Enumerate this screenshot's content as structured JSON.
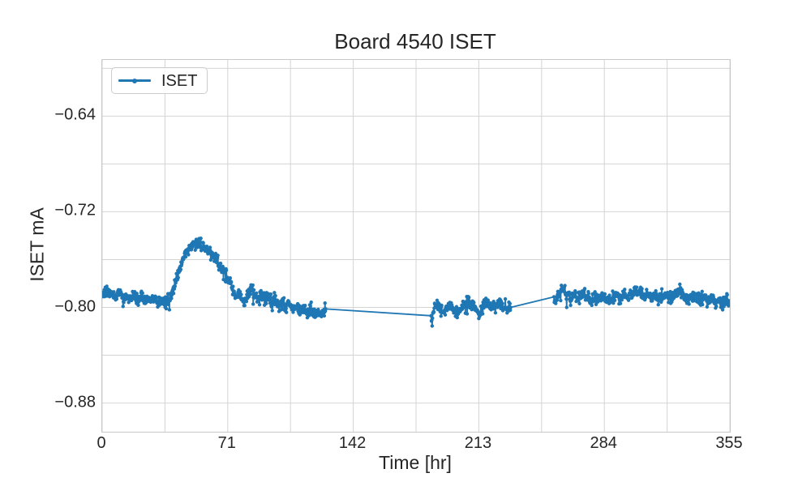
{
  "chart_data": {
    "type": "line",
    "title": "Board 4540 ISET",
    "xlabel": "Time [hr]",
    "ylabel": "ISET mA",
    "xlim": [
      0,
      355
    ],
    "ylim": [
      -0.904,
      -0.593
    ],
    "xticks": [
      0,
      71,
      142,
      213,
      284,
      355
    ],
    "xtick_labels": [
      "0",
      "71",
      "142",
      "213",
      "284",
      "355"
    ],
    "ytick_values": [
      -0.64,
      -0.72,
      -0.8,
      -0.88
    ],
    "ytick_labels": [
      "−0.64",
      "−0.72",
      "−0.80",
      "−0.88"
    ],
    "grid": true,
    "x_grid_step": 35.5,
    "y_grid_top": -0.6,
    "y_grid_bottom": -0.88,
    "y_grid_step": 0.04,
    "grid_color": "#d4d4d4",
    "spine_color": "#c9c9c9",
    "text_color": "#262626",
    "background_color": "#ffffff",
    "legend": {
      "position": "upper left",
      "entries": [
        {
          "label": "ISET",
          "color": "#1f77b4",
          "marker": "circle"
        }
      ]
    },
    "series": [
      {
        "name": "ISET",
        "color": "#1f77b4",
        "line_width": 1.8,
        "marker_radius": 2.2,
        "sample_step_hr": 0.2,
        "noise_sigma": 0.0024,
        "spike_probability": 0.012,
        "seed": 1337,
        "segments": [
          [
            0,
            126.5
          ],
          [
            186,
            231
          ],
          [
            255.5,
            355
          ]
        ],
        "gaps_hr": [
          [
            126.5,
            186
          ],
          [
            231,
            255.5
          ]
        ],
        "trend_keypoints": [
          [
            0,
            -0.789
          ],
          [
            2,
            -0.786
          ],
          [
            4,
            -0.789
          ],
          [
            6,
            -0.787
          ],
          [
            8,
            -0.79
          ],
          [
            10,
            -0.787
          ],
          [
            12,
            -0.793
          ],
          [
            14,
            -0.79
          ],
          [
            16,
            -0.792
          ],
          [
            18,
            -0.79
          ],
          [
            20,
            -0.793
          ],
          [
            22,
            -0.791
          ],
          [
            24,
            -0.794
          ],
          [
            26,
            -0.792
          ],
          [
            28,
            -0.795
          ],
          [
            30,
            -0.792
          ],
          [
            32,
            -0.795
          ],
          [
            34,
            -0.793
          ],
          [
            36,
            -0.796
          ],
          [
            38,
            -0.793
          ],
          [
            40,
            -0.786
          ],
          [
            42,
            -0.776
          ],
          [
            44,
            -0.767
          ],
          [
            46,
            -0.759
          ],
          [
            48,
            -0.753
          ],
          [
            50,
            -0.749
          ],
          [
            52,
            -0.747
          ],
          [
            54,
            -0.746
          ],
          [
            56,
            -0.748
          ],
          [
            58,
            -0.75
          ],
          [
            60,
            -0.752
          ],
          [
            62,
            -0.756
          ],
          [
            64,
            -0.76
          ],
          [
            66,
            -0.765
          ],
          [
            68,
            -0.769
          ],
          [
            70,
            -0.772
          ],
          [
            72,
            -0.777
          ],
          [
            74,
            -0.786
          ],
          [
            76,
            -0.793
          ],
          [
            78,
            -0.787
          ],
          [
            80,
            -0.796
          ],
          [
            82,
            -0.79
          ],
          [
            84,
            -0.785
          ],
          [
            86,
            -0.789
          ],
          [
            88,
            -0.793
          ],
          [
            90,
            -0.789
          ],
          [
            92,
            -0.794
          ],
          [
            94,
            -0.791
          ],
          [
            96,
            -0.797
          ],
          [
            98,
            -0.794
          ],
          [
            100,
            -0.799
          ],
          [
            102,
            -0.795
          ],
          [
            104,
            -0.8
          ],
          [
            106,
            -0.797
          ],
          [
            108,
            -0.803
          ],
          [
            110,
            -0.799
          ],
          [
            112,
            -0.804
          ],
          [
            114,
            -0.8
          ],
          [
            116,
            -0.806
          ],
          [
            118,
            -0.802
          ],
          [
            120,
            -0.806
          ],
          [
            122,
            -0.803
          ],
          [
            124,
            -0.806
          ],
          [
            126.5,
            -0.803
          ],
          [
            186,
            -0.806
          ],
          [
            186.5,
            -0.814
          ],
          [
            187.5,
            -0.801
          ],
          [
            189,
            -0.798
          ],
          [
            191,
            -0.801
          ],
          [
            193,
            -0.804
          ],
          [
            195,
            -0.8
          ],
          [
            197,
            -0.797
          ],
          [
            199,
            -0.801
          ],
          [
            201,
            -0.804
          ],
          [
            203,
            -0.8
          ],
          [
            205,
            -0.796
          ],
          [
            207,
            -0.795
          ],
          [
            209,
            -0.798
          ],
          [
            211,
            -0.802
          ],
          [
            213,
            -0.805
          ],
          [
            215,
            -0.8
          ],
          [
            217,
            -0.796
          ],
          [
            219,
            -0.798
          ],
          [
            221,
            -0.801
          ],
          [
            223,
            -0.798
          ],
          [
            225,
            -0.796
          ],
          [
            227,
            -0.799
          ],
          [
            229,
            -0.801
          ],
          [
            231,
            -0.8
          ],
          [
            255.5,
            -0.795
          ],
          [
            257,
            -0.792
          ],
          [
            259,
            -0.788
          ],
          [
            261,
            -0.786
          ],
          [
            263,
            -0.79
          ],
          [
            265,
            -0.793
          ],
          [
            267,
            -0.79
          ],
          [
            269,
            -0.793
          ],
          [
            271,
            -0.79
          ],
          [
            273,
            -0.788
          ],
          [
            275,
            -0.792
          ],
          [
            277,
            -0.794
          ],
          [
            279,
            -0.79
          ],
          [
            281,
            -0.793
          ],
          [
            283,
            -0.79
          ],
          [
            285,
            -0.792
          ],
          [
            287,
            -0.794
          ],
          [
            289,
            -0.791
          ],
          [
            291,
            -0.788
          ],
          [
            293,
            -0.792
          ],
          [
            295,
            -0.79
          ],
          [
            297,
            -0.793
          ],
          [
            299,
            -0.79
          ],
          [
            301,
            -0.787
          ],
          [
            303,
            -0.785
          ],
          [
            305,
            -0.788
          ],
          [
            307,
            -0.792
          ],
          [
            309,
            -0.789
          ],
          [
            311,
            -0.793
          ],
          [
            313,
            -0.79
          ],
          [
            315,
            -0.794
          ],
          [
            317,
            -0.791
          ],
          [
            319,
            -0.789
          ],
          [
            321,
            -0.793
          ],
          [
            323,
            -0.79
          ],
          [
            325,
            -0.787
          ],
          [
            327,
            -0.786
          ],
          [
            329,
            -0.789
          ],
          [
            331,
            -0.792
          ],
          [
            333,
            -0.789
          ],
          [
            335,
            -0.793
          ],
          [
            337,
            -0.79
          ],
          [
            339,
            -0.794
          ],
          [
            341,
            -0.791
          ],
          [
            343,
            -0.795
          ],
          [
            345,
            -0.792
          ],
          [
            347,
            -0.796
          ],
          [
            349,
            -0.793
          ],
          [
            351,
            -0.796
          ],
          [
            353,
            -0.794
          ],
          [
            355,
            -0.797
          ]
        ]
      }
    ]
  }
}
